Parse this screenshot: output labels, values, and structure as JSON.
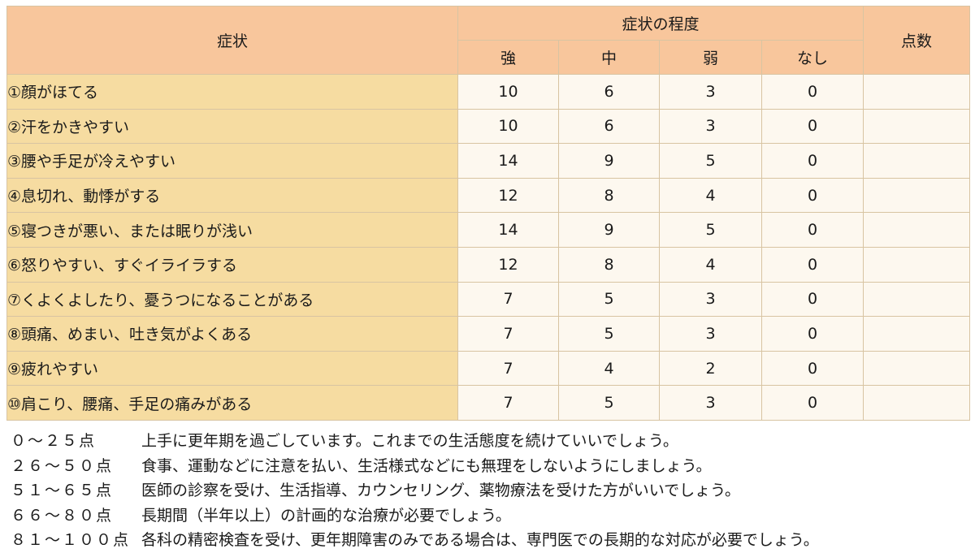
{
  "table": {
    "header": {
      "symptom": "症状",
      "degree": "症状の程度",
      "score": "点数",
      "levels": [
        "強",
        "中",
        "弱",
        "なし"
      ]
    },
    "rows": [
      {
        "label": "①顔がほてる",
        "values": [
          "10",
          "6",
          "3",
          "0"
        ]
      },
      {
        "label": "②汗をかきやすい",
        "values": [
          "10",
          "6",
          "3",
          "0"
        ]
      },
      {
        "label": "③腰や手足が冷えやすい",
        "values": [
          "14",
          "9",
          "5",
          "0"
        ]
      },
      {
        "label": "④息切れ、動悸がする",
        "values": [
          "12",
          "8",
          "4",
          "0"
        ]
      },
      {
        "label": "⑤寝つきが悪い、または眠りが浅い",
        "values": [
          "14",
          "9",
          "5",
          "0"
        ]
      },
      {
        "label": "⑥怒りやすい、すぐイライラする",
        "values": [
          "12",
          "8",
          "4",
          "0"
        ]
      },
      {
        "label": "⑦くよくよしたり、憂うつになることがある",
        "values": [
          "7",
          "5",
          "3",
          "0"
        ]
      },
      {
        "label": "⑧頭痛、めまい、吐き気がよくある",
        "values": [
          "7",
          "5",
          "3",
          "0"
        ]
      },
      {
        "label": "⑨疲れやすい",
        "values": [
          "7",
          "4",
          "2",
          "0"
        ]
      },
      {
        "label": "⑩肩こり、腰痛、手足の痛みがある",
        "values": [
          "7",
          "5",
          "3",
          "0"
        ]
      }
    ]
  },
  "legend": [
    {
      "range": "０～２５点",
      "text": "上手に更年期を過ごしています。これまでの生活態度を続けていいでしょう。"
    },
    {
      "range": "２６～５０点",
      "text": "食事、運動などに注意を払い、生活様式などにも無理をしないようにしましょう。"
    },
    {
      "range": "５１～６５点",
      "text": "医師の診察を受け、生活指導、カウンセリング、薬物療法を受けた方がいいでしょう。"
    },
    {
      "range": "６６～８０点",
      "text": "長期間（半年以上）の計画的な治療が必要でしょう。"
    },
    {
      "range": "８１～１００点",
      "text": "各科の精密検査を受け、更年期障害のみである場合は、専門医での長期的な対応が必要でしょう。"
    }
  ]
}
